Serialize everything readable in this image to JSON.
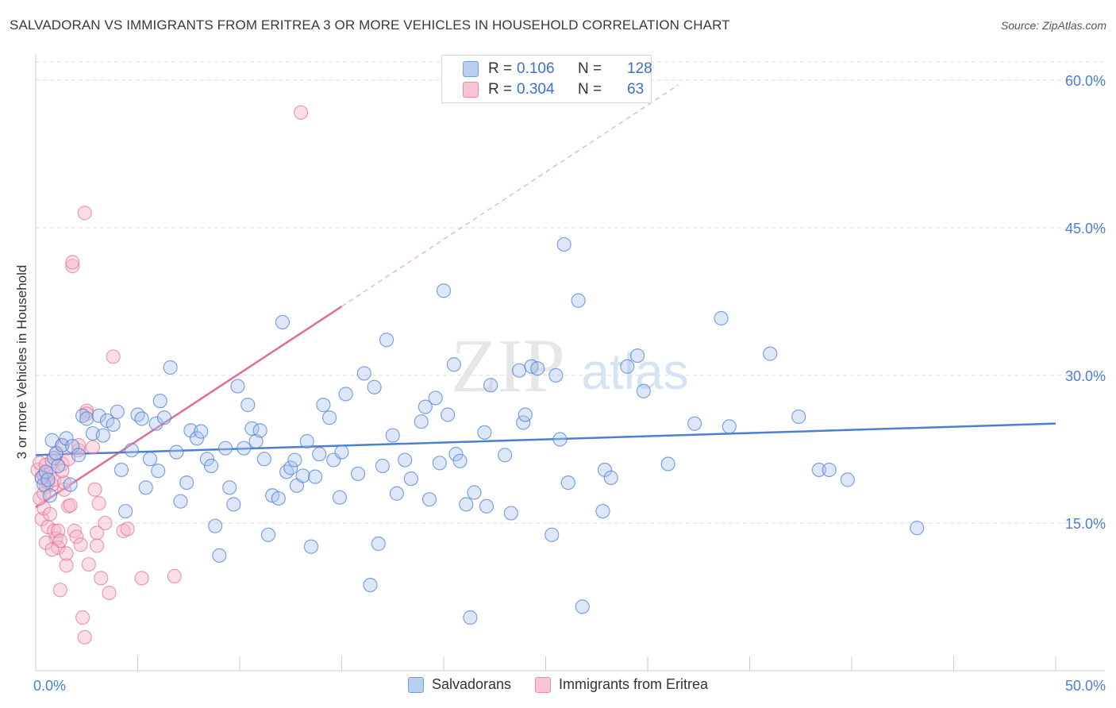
{
  "title": "SALVADORAN VS IMMIGRANTS FROM ERITREA 3 OR MORE VEHICLES IN HOUSEHOLD CORRELATION CHART",
  "source": "Source: ZipAtlas.com",
  "watermark": {
    "zip": "ZIP",
    "atlas": "atlas"
  },
  "legend_box": {
    "rows": [
      {
        "r_label": "R =",
        "r_value": "0.106",
        "n_label": "N =",
        "n_value": "128"
      },
      {
        "r_label": "R =",
        "r_value": "0.304",
        "n_label": "N =",
        "n_value": "63"
      }
    ]
  },
  "colors": {
    "blue": "#4a7fd4",
    "blue_fill": "#aac4ee",
    "pink": "#e26d93",
    "pink_fill": "#f5b6c9",
    "grid": "#dddddd",
    "axis_text": "#4a7fd4"
  },
  "chart_data": {
    "type": "scatter",
    "title": "SALVADORAN VS IMMIGRANTS FROM ERITREA 3 OR MORE VEHICLES IN HOUSEHOLD CORRELATION CHART",
    "xlabel": "",
    "ylabel": "3 or more Vehicles in Household",
    "xlim": [
      0,
      50
    ],
    "ylim": [
      0,
      62
    ],
    "x_tick_labels": [
      {
        "value": 0,
        "label": "0.0%"
      },
      {
        "value": 50,
        "label": "50.0%"
      }
    ],
    "y_tick_labels": [
      {
        "value": 15,
        "label": "15.0%"
      },
      {
        "value": 30,
        "label": "30.0%"
      },
      {
        "value": 45,
        "label": "45.0%"
      },
      {
        "value": 60,
        "label": "60.0%"
      }
    ],
    "legend": [
      "Salvadorans",
      "Immigrants from Eritrea"
    ],
    "series": [
      {
        "name": "Salvadorans",
        "color": "#4a7fd4",
        "trend": {
          "x": [
            0,
            50
          ],
          "y": [
            21.9,
            25.1
          ],
          "style": "solid"
        },
        "points": [
          [
            0.3,
            19.6
          ],
          [
            0.4,
            18.9
          ],
          [
            0.5,
            20.2
          ],
          [
            0.6,
            19.4
          ],
          [
            0.7,
            17.8
          ],
          [
            0.8,
            23.4
          ],
          [
            0.9,
            21.6
          ],
          [
            1.0,
            22.1
          ],
          [
            1.1,
            20.8
          ],
          [
            1.3,
            22.9
          ],
          [
            1.5,
            23.6
          ],
          [
            1.7,
            18.9
          ],
          [
            1.8,
            22.8
          ],
          [
            2.1,
            21.9
          ],
          [
            2.3,
            25.9
          ],
          [
            2.5,
            25.6
          ],
          [
            2.8,
            24.1
          ],
          [
            3.1,
            25.9
          ],
          [
            3.3,
            23.9
          ],
          [
            3.5,
            25.4
          ],
          [
            3.8,
            25.0
          ],
          [
            4.0,
            26.3
          ],
          [
            4.2,
            20.4
          ],
          [
            4.4,
            16.2
          ],
          [
            4.7,
            22.4
          ],
          [
            5.0,
            26.0
          ],
          [
            5.2,
            25.6
          ],
          [
            5.4,
            18.6
          ],
          [
            5.6,
            21.5
          ],
          [
            5.9,
            25.1
          ],
          [
            6.0,
            20.3
          ],
          [
            6.1,
            27.4
          ],
          [
            6.3,
            25.7
          ],
          [
            6.6,
            30.8
          ],
          [
            6.9,
            22.2
          ],
          [
            7.1,
            17.2
          ],
          [
            7.4,
            19.1
          ],
          [
            7.6,
            24.4
          ],
          [
            7.9,
            23.6
          ],
          [
            8.1,
            24.3
          ],
          [
            8.4,
            21.5
          ],
          [
            8.6,
            20.8
          ],
          [
            8.8,
            14.7
          ],
          [
            9.0,
            11.7
          ],
          [
            9.3,
            22.6
          ],
          [
            9.5,
            18.6
          ],
          [
            9.7,
            16.9
          ],
          [
            9.9,
            28.9
          ],
          [
            10.2,
            22.6
          ],
          [
            10.4,
            27.0
          ],
          [
            10.6,
            24.6
          ],
          [
            10.8,
            23.3
          ],
          [
            11.0,
            24.4
          ],
          [
            11.2,
            21.5
          ],
          [
            11.4,
            13.8
          ],
          [
            11.6,
            17.8
          ],
          [
            11.9,
            17.5
          ],
          [
            12.1,
            35.4
          ],
          [
            12.3,
            20.2
          ],
          [
            12.5,
            20.6
          ],
          [
            12.7,
            21.4
          ],
          [
            12.8,
            18.8
          ],
          [
            13.1,
            19.8
          ],
          [
            13.3,
            23.3
          ],
          [
            13.5,
            12.6
          ],
          [
            13.7,
            19.7
          ],
          [
            13.9,
            22.0
          ],
          [
            14.1,
            27.0
          ],
          [
            14.4,
            25.7
          ],
          [
            14.6,
            21.4
          ],
          [
            14.9,
            17.6
          ],
          [
            15.0,
            22.2
          ],
          [
            15.2,
            28.1
          ],
          [
            15.8,
            20.0
          ],
          [
            16.1,
            30.2
          ],
          [
            16.4,
            8.7
          ],
          [
            16.6,
            28.8
          ],
          [
            16.8,
            12.9
          ],
          [
            17.0,
            20.8
          ],
          [
            17.2,
            33.6
          ],
          [
            17.5,
            23.9
          ],
          [
            17.7,
            18.0
          ],
          [
            18.1,
            21.4
          ],
          [
            18.4,
            19.5
          ],
          [
            18.9,
            25.3
          ],
          [
            19.1,
            26.8
          ],
          [
            19.3,
            17.4
          ],
          [
            19.6,
            27.7
          ],
          [
            19.8,
            21.1
          ],
          [
            20.0,
            38.6
          ],
          [
            20.2,
            26.0
          ],
          [
            20.5,
            31.1
          ],
          [
            20.6,
            22.0
          ],
          [
            20.8,
            21.3
          ],
          [
            21.1,
            16.9
          ],
          [
            21.3,
            5.4
          ],
          [
            21.5,
            18.1
          ],
          [
            22.0,
            24.2
          ],
          [
            22.1,
            16.7
          ],
          [
            22.3,
            29.0
          ],
          [
            23.0,
            21.9
          ],
          [
            23.3,
            16.0
          ],
          [
            23.7,
            30.5
          ],
          [
            23.9,
            25.2
          ],
          [
            24.0,
            26.0
          ],
          [
            24.3,
            30.9
          ],
          [
            24.6,
            30.7
          ],
          [
            25.3,
            13.8
          ],
          [
            25.5,
            30.0
          ],
          [
            25.7,
            23.5
          ],
          [
            25.9,
            43.3
          ],
          [
            26.1,
            19.1
          ],
          [
            26.6,
            37.6
          ],
          [
            26.8,
            6.5
          ],
          [
            27.8,
            16.2
          ],
          [
            27.9,
            20.4
          ],
          [
            28.2,
            19.6
          ],
          [
            29.0,
            30.9
          ],
          [
            29.5,
            32.0
          ],
          [
            29.8,
            28.4
          ],
          [
            31.0,
            21.0
          ],
          [
            32.3,
            25.1
          ],
          [
            33.6,
            35.8
          ],
          [
            34.0,
            24.8
          ],
          [
            36.0,
            32.2
          ],
          [
            37.4,
            25.8
          ],
          [
            38.4,
            20.4
          ],
          [
            38.9,
            20.4
          ],
          [
            39.8,
            19.4
          ],
          [
            43.2,
            14.5
          ]
        ]
      },
      {
        "name": "Immigrants from Eritrea",
        "color": "#e26d93",
        "trend": {
          "x": [
            0,
            15
          ],
          "y": [
            16.6,
            37.0
          ],
          "style": "solid",
          "extended_to": {
            "x": 31.5,
            "y": 59.5
          },
          "extended_style": "dashed"
        },
        "points": [
          [
            0.1,
            20.4
          ],
          [
            0.2,
            21.1
          ],
          [
            0.3,
            19.6
          ],
          [
            0.3,
            15.4
          ],
          [
            0.4,
            16.5
          ],
          [
            0.4,
            19.9
          ],
          [
            0.5,
            18.7
          ],
          [
            0.5,
            20.9
          ],
          [
            0.6,
            19.1
          ],
          [
            0.6,
            14.6
          ],
          [
            0.7,
            20.0
          ],
          [
            0.7,
            15.9
          ],
          [
            0.8,
            18.9
          ],
          [
            0.8,
            21.3
          ],
          [
            0.9,
            14.2
          ],
          [
            0.9,
            19.4
          ],
          [
            1.0,
            13.4
          ],
          [
            1.0,
            22.0
          ],
          [
            1.1,
            12.5
          ],
          [
            1.1,
            14.2
          ],
          [
            1.2,
            8.2
          ],
          [
            1.2,
            13.2
          ],
          [
            1.3,
            21.0
          ],
          [
            1.3,
            22.9
          ],
          [
            1.4,
            18.4
          ],
          [
            1.4,
            19.1
          ],
          [
            1.5,
            10.7
          ],
          [
            1.5,
            11.9
          ],
          [
            1.6,
            16.7
          ],
          [
            1.6,
            21.5
          ],
          [
            1.7,
            16.8
          ],
          [
            1.8,
            41.1
          ],
          [
            1.8,
            41.5
          ],
          [
            1.9,
            14.2
          ],
          [
            2.0,
            13.6
          ],
          [
            2.1,
            22.4
          ],
          [
            2.1,
            22.9
          ],
          [
            2.2,
            12.8
          ],
          [
            2.3,
            5.4
          ],
          [
            2.4,
            3.4
          ],
          [
            2.4,
            46.5
          ],
          [
            2.5,
            26.4
          ],
          [
            2.5,
            26.1
          ],
          [
            2.6,
            10.8
          ],
          [
            2.8,
            22.7
          ],
          [
            2.9,
            18.4
          ],
          [
            3.0,
            14.0
          ],
          [
            3.0,
            12.7
          ],
          [
            3.1,
            17.0
          ],
          [
            3.2,
            9.4
          ],
          [
            3.4,
            15.0
          ],
          [
            3.6,
            7.9
          ],
          [
            3.8,
            31.9
          ],
          [
            4.3,
            14.2
          ],
          [
            4.5,
            14.4
          ],
          [
            5.2,
            9.4
          ],
          [
            6.8,
            9.6
          ],
          [
            13.0,
            56.7
          ],
          [
            0.2,
            17.5
          ],
          [
            0.5,
            13.0
          ],
          [
            0.8,
            12.3
          ],
          [
            1.3,
            20.3
          ],
          [
            0.4,
            18.0
          ]
        ]
      }
    ]
  }
}
